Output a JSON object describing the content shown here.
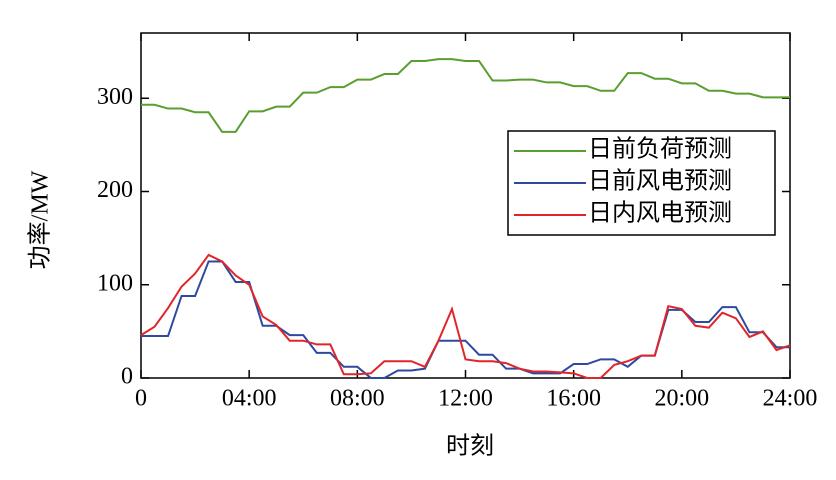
{
  "chart_data": {
    "type": "line",
    "xlabel": "时刻",
    "ylabel": "功率/MW",
    "x": [
      0,
      0.5,
      1,
      1.5,
      2,
      2.5,
      3,
      3.5,
      4,
      4.5,
      5,
      5.5,
      6,
      6.5,
      7,
      7.5,
      8,
      8.5,
      9,
      9.5,
      10,
      10.5,
      11,
      11.5,
      12,
      12.5,
      13,
      13.5,
      14,
      14.5,
      15,
      15.5,
      16,
      16.5,
      17,
      17.5,
      18,
      18.5,
      19,
      19.5,
      20,
      20.5,
      21,
      21.5,
      22,
      22.5,
      23,
      23.5,
      24
    ],
    "series": [
      {
        "name": "日前负荷预测",
        "color": "#5a9e2f",
        "values": [
          293,
          293,
          289,
          289,
          285,
          285,
          264,
          264,
          286,
          286,
          291,
          291,
          306,
          306,
          312,
          312,
          320,
          320,
          326,
          326,
          340,
          340,
          342,
          342,
          340,
          340,
          319,
          319,
          320,
          320,
          317,
          317,
          313,
          313,
          308,
          308,
          327,
          327,
          321,
          321,
          316,
          316,
          308,
          308,
          305,
          305,
          301,
          301,
          301
        ]
      },
      {
        "name": "日前风电预测",
        "color": "#2d4aa0",
        "values": [
          45,
          45,
          45,
          88,
          88,
          125,
          125,
          103,
          103,
          56,
          56,
          46,
          46,
          27,
          27,
          12,
          12,
          0,
          0,
          8,
          8,
          10,
          40,
          40,
          40,
          25,
          25,
          10,
          10,
          5,
          5,
          5,
          15,
          15,
          20,
          20,
          12,
          24,
          24,
          73,
          73,
          60,
          60,
          76,
          76,
          49,
          49,
          33,
          33
        ]
      },
      {
        "name": "日内风电预测",
        "color": "#e0262b",
        "values": [
          46,
          55,
          75,
          98,
          112,
          132,
          125,
          110,
          100,
          66,
          57,
          40,
          40,
          36,
          36,
          4,
          4,
          5,
          18,
          18,
          18,
          12,
          40,
          74,
          20,
          18,
          18,
          16,
          10,
          7,
          7,
          6,
          5,
          0,
          0,
          14,
          18,
          24,
          24,
          77,
          74,
          56,
          54,
          70,
          64,
          44,
          50,
          30,
          35
        ]
      }
    ],
    "xlim": [
      0,
      24
    ],
    "xticks": [
      0,
      {
        "value": 4,
        "label": "04:00"
      },
      {
        "value": 8,
        "label": "08:00"
      },
      {
        "value": 12,
        "label": "12:00"
      },
      {
        "value": 16,
        "label": "16:00"
      },
      {
        "value": 20,
        "label": "20:00"
      },
      {
        "value": 24,
        "label": "24:00"
      }
    ],
    "ylim": [
      0,
      370
    ],
    "yticks": [
      0,
      100,
      200,
      300
    ],
    "legend": "upper right",
    "grid": false
  }
}
